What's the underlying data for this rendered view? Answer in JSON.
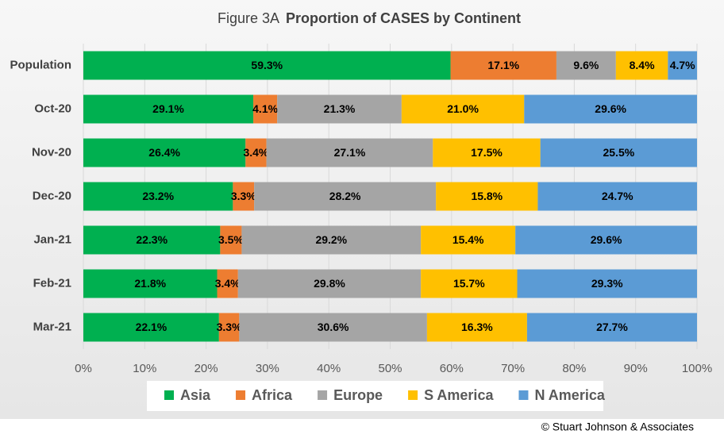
{
  "chart_data": {
    "type": "bar",
    "orientation": "horizontal",
    "stacking": "percent",
    "figure_label": "Figure  3A",
    "title": "Proportion of CASES by Continent",
    "source": "© Stuart Johnson & Associates",
    "categories": [
      "Population",
      "Oct-20",
      "Nov-20",
      "Dec-20",
      "Jan-21",
      "Feb-21",
      "Mar-21"
    ],
    "series": [
      {
        "name": "Asia",
        "color": "#00b050",
        "values": [
          59.3,
          29.1,
          26.4,
          23.2,
          22.3,
          21.8,
          22.1
        ],
        "value_labels": [
          "59.3%",
          "29.1%",
          "26.4%",
          "23.2%",
          "22.3%",
          "21.8%",
          "22.1%"
        ]
      },
      {
        "name": "Africa",
        "color": "#ed7d31",
        "values": [
          17.1,
          4.1,
          3.4,
          3.3,
          3.5,
          3.4,
          3.3
        ],
        "value_labels": [
          "17.1%",
          "4.1%",
          "3.4%",
          "3.3%",
          "3.5%",
          "3.4%",
          "3.3%"
        ]
      },
      {
        "name": "Europe",
        "color": "#a5a5a5",
        "values": [
          9.6,
          21.3,
          27.1,
          28.2,
          29.2,
          29.8,
          30.6
        ],
        "value_labels": [
          "9.6%",
          "21.3%",
          "27.1%",
          "28.2%",
          "29.2%",
          "29.8%",
          "30.6%"
        ]
      },
      {
        "name": "S America",
        "color": "#ffc000",
        "values": [
          8.4,
          21.0,
          17.5,
          15.8,
          15.4,
          15.7,
          16.3
        ],
        "value_labels": [
          "8.4%",
          "21.0%",
          "17.5%",
          "15.8%",
          "15.4%",
          "15.7%",
          "16.3%"
        ]
      },
      {
        "name": "N America",
        "color": "#5b9bd5",
        "values": [
          4.7,
          29.6,
          25.5,
          24.7,
          29.6,
          29.3,
          27.7
        ],
        "value_labels": [
          "4.7%",
          "29.6%",
          "25.5%",
          "24.7%",
          "29.6%",
          "29.3%",
          "27.7%"
        ]
      }
    ],
    "xlim": [
      0,
      100
    ],
    "xticks": [
      {
        "value": 0,
        "label": "0%"
      },
      {
        "value": 10,
        "label": "10%"
      },
      {
        "value": 20,
        "label": "20%"
      },
      {
        "value": 30,
        "label": "30%"
      },
      {
        "value": 40,
        "label": "40%"
      },
      {
        "value": 50,
        "label": "50%"
      },
      {
        "value": 60,
        "label": "60%"
      },
      {
        "value": 70,
        "label": "70%"
      },
      {
        "value": 80,
        "label": "80%"
      },
      {
        "value": 90,
        "label": "90%"
      },
      {
        "value": 100,
        "label": "100%"
      }
    ],
    "grid": true,
    "legend": "bottom"
  }
}
